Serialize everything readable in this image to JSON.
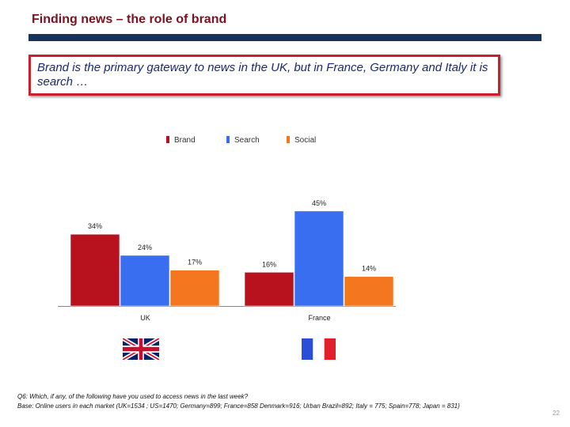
{
  "slide": {
    "title": "Finding news – the role of brand",
    "callout": "Brand is the primary gateway to news  in the UK, but in France, Germany and Italy it is search …",
    "footnote_q": "Q6: Which, if any, of the following have you used to access news in the last week?",
    "footnote_base": "Base: Online users in each market (UK=1534 ; US=1470; Germany=899; France=858  Denmark=916; Urban Brazil=892; Italy = 775; Spain=778; Japan  = 831)",
    "page_number": "22"
  },
  "colors": {
    "brand": "#b8121f",
    "search": "#3a6ef0",
    "social": "#f47720",
    "title_bar": "#17335c"
  },
  "flags": [
    {
      "country": "UK",
      "icon": "union-jack-flag-icon"
    },
    {
      "country": "France",
      "icon": "french-flag-icon"
    }
  ],
  "chart_data": {
    "type": "bar",
    "title": "",
    "categories": [
      "UK",
      "France"
    ],
    "series": [
      {
        "name": "Brand",
        "values": [
          34,
          16
        ],
        "labels": [
          "34%",
          "16%"
        ]
      },
      {
        "name": "Search",
        "values": [
          24,
          45
        ],
        "labels": [
          "24%",
          "45%"
        ]
      },
      {
        "name": "Social",
        "values": [
          17,
          14
        ],
        "labels": [
          "17%",
          "14%"
        ]
      }
    ],
    "xlabel": "",
    "ylabel": "",
    "ylim": [
      0,
      50
    ],
    "unit": "%",
    "legend": "top"
  }
}
